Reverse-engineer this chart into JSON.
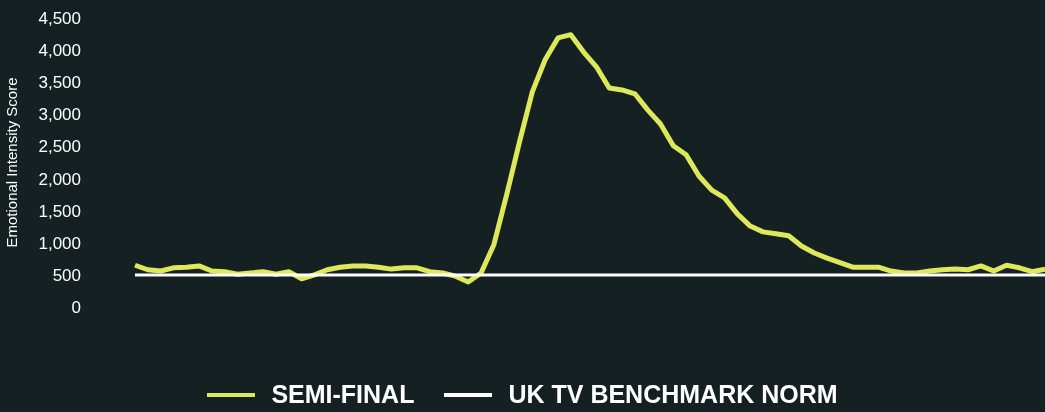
{
  "chart_data": {
    "type": "line",
    "ylabel": "Emotional Intensity Score",
    "categories": [
      null,
      null,
      null,
      null,
      null,
      null,
      null,
      null,
      null,
      null,
      null,
      null,
      null,
      null,
      null,
      null,
      null,
      null,
      null,
      null,
      null,
      null,
      null,
      null,
      null,
      null,
      null,
      null,
      null,
      null,
      null,
      null,
      null,
      null,
      null,
      null,
      null,
      null,
      null,
      null,
      null,
      null,
      null,
      null,
      null,
      null,
      null,
      null,
      null,
      null,
      null,
      null,
      null,
      null,
      null,
      null,
      null,
      null,
      null,
      null,
      null,
      null,
      null,
      null,
      null,
      null,
      null,
      null,
      null,
      null,
      null,
      null
    ],
    "series": [
      {
        "name": "SEMI-FINAL",
        "color": "#dde85a",
        "values": [
          650,
          580,
          560,
          610,
          620,
          640,
          560,
          550,
          510,
          530,
          550,
          510,
          550,
          440,
          500,
          580,
          620,
          640,
          640,
          620,
          590,
          610,
          610,
          550,
          530,
          480,
          390,
          530,
          970,
          1750,
          2570,
          3350,
          3850,
          4190,
          4240,
          3970,
          3740,
          3410,
          3380,
          3320,
          3070,
          2850,
          2510,
          2370,
          2040,
          1820,
          1700,
          1450,
          1260,
          1170,
          1140,
          1110,
          950,
          840,
          760,
          690,
          620,
          620,
          620,
          560,
          530,
          530,
          560,
          580,
          590,
          580,
          640,
          560,
          650,
          610,
          550,
          590
        ]
      },
      {
        "name": "UK TV BENCHMARK NORM",
        "color": "#ffffff",
        "values": [
          500,
          500,
          500,
          500,
          500,
          500,
          500,
          500,
          500,
          500,
          500,
          500,
          500,
          500,
          500,
          500,
          500,
          500,
          500,
          500,
          500,
          500,
          500,
          500,
          500,
          500,
          500,
          500,
          500,
          500,
          500,
          500,
          500,
          500,
          500,
          500,
          500,
          500,
          500,
          500,
          500,
          500,
          500,
          500,
          500,
          500,
          500,
          500,
          500,
          500,
          500,
          500,
          500,
          500,
          500,
          500,
          500,
          500,
          500,
          500,
          500,
          500,
          500,
          500,
          500,
          500,
          500,
          500,
          500,
          500,
          500,
          500
        ]
      }
    ],
    "ylim": [
      0,
      4500
    ],
    "yticks": [
      0,
      500,
      {
        "value": 1000,
        "label": "1,000"
      },
      {
        "value": 1500,
        "label": "1,500"
      },
      {
        "value": 2000,
        "label": "2,000"
      },
      {
        "value": 2500,
        "label": "2,500"
      },
      {
        "value": 3000,
        "label": "3,000"
      },
      {
        "value": 3500,
        "label": "3,500"
      },
      {
        "value": 4000,
        "label": "4,000"
      },
      {
        "value": 4500,
        "label": "4,500"
      }
    ],
    "grid": false,
    "legend": "bottom",
    "marker": "none",
    "line_style": "solid",
    "tick_labels": "y"
  }
}
